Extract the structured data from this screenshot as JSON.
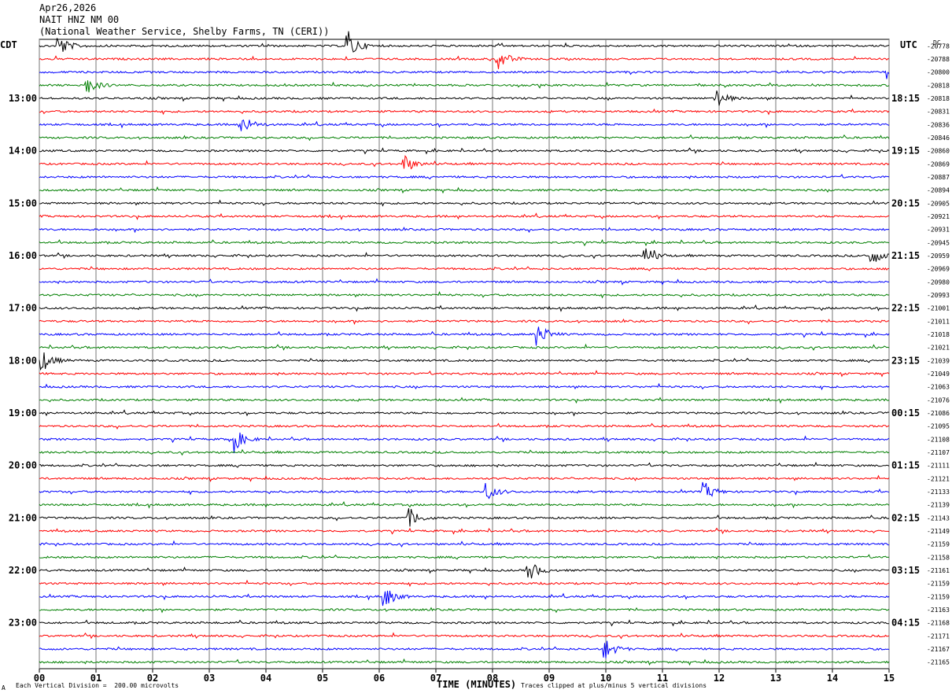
{
  "header": {
    "date": "Apr26,2026",
    "station": "NAIT HNZ NM 00",
    "location": "(National Weather Service, Shelby Farms, TN (CERI))"
  },
  "left_zone_label": "CDT",
  "right_zone_label": "UTC",
  "dc_label": "DC",
  "footer": {
    "mark": "A",
    "scale_note": "Each Vertical Division =  200.00 microvolts",
    "clip_note": "Traces clipped at plus/minus 5 vertical divisions"
  },
  "chart_data": {
    "type": "line",
    "title": "",
    "xlabel": "TIME (MINUTES)",
    "xlim": [
      0,
      15
    ],
    "x_ticks": [
      "00",
      "01",
      "02",
      "03",
      "04",
      "05",
      "06",
      "07",
      "08",
      "09",
      "10",
      "11",
      "12",
      "13",
      "14",
      "15"
    ],
    "trace_colors": [
      "#000000",
      "#ff0000",
      "#0000ff",
      "#007f00"
    ],
    "hour_labels_left": [
      "13:00",
      "14:00",
      "15:00",
      "16:00",
      "17:00",
      "18:00",
      "19:00",
      "20:00",
      "21:00",
      "22:00",
      "23:00"
    ],
    "hour_labels_right": [
      "18:15",
      "19:15",
      "20:15",
      "21:15",
      "22:15",
      "23:15",
      "00:15",
      "01:15",
      "02:15",
      "03:15",
      "04:15"
    ],
    "dc_offsets": [
      -20778,
      -20788,
      -20800,
      -20818,
      -20818,
      -20831,
      -20836,
      -20846,
      -20860,
      -20869,
      -20887,
      -20894,
      -20905,
      -20921,
      -20931,
      -20945,
      -20959,
      -20969,
      -20980,
      -20993,
      -21001,
      -21011,
      -21018,
      -21021,
      -21039,
      -21049,
      -21063,
      -21076,
      -21086,
      -21095,
      -21108,
      -21107,
      -21111,
      -21121,
      -21133,
      -21139,
      -21143,
      -21149,
      -21159,
      -21158,
      -21161,
      -21159,
      -21159,
      -21163,
      -21168,
      -21171,
      -21167,
      -21165
    ],
    "events": [
      {
        "trace": 0,
        "minute": 5.45,
        "amp": 1.4
      },
      {
        "trace": 0,
        "minute": 0.35,
        "amp": 1.0
      },
      {
        "trace": 1,
        "minute": 8.1,
        "amp": 1.0
      },
      {
        "trace": 2,
        "minute": 15.0,
        "amp": 0.9
      },
      {
        "trace": 3,
        "minute": 0.85,
        "amp": 0.8
      },
      {
        "trace": 4,
        "minute": 11.95,
        "amp": 0.9
      },
      {
        "trace": 6,
        "minute": 3.6,
        "amp": 0.8
      },
      {
        "trace": 9,
        "minute": 6.45,
        "amp": 0.8
      },
      {
        "trace": 16,
        "minute": 10.7,
        "amp": 0.9
      },
      {
        "trace": 16,
        "minute": 14.7,
        "amp": 0.8
      },
      {
        "trace": 22,
        "minute": 8.8,
        "amp": 1.1
      },
      {
        "trace": 24,
        "minute": 0.05,
        "amp": 1.0
      },
      {
        "trace": 30,
        "minute": 3.4,
        "amp": 1.4
      },
      {
        "trace": 34,
        "minute": 7.9,
        "amp": 0.8
      },
      {
        "trace": 34,
        "minute": 11.75,
        "amp": 0.8
      },
      {
        "trace": 36,
        "minute": 6.55,
        "amp": 0.8
      },
      {
        "trace": 40,
        "minute": 8.65,
        "amp": 0.9
      },
      {
        "trace": 42,
        "minute": 6.1,
        "amp": 1.0
      },
      {
        "trace": 46,
        "minute": 10.0,
        "amp": 0.9
      }
    ]
  }
}
